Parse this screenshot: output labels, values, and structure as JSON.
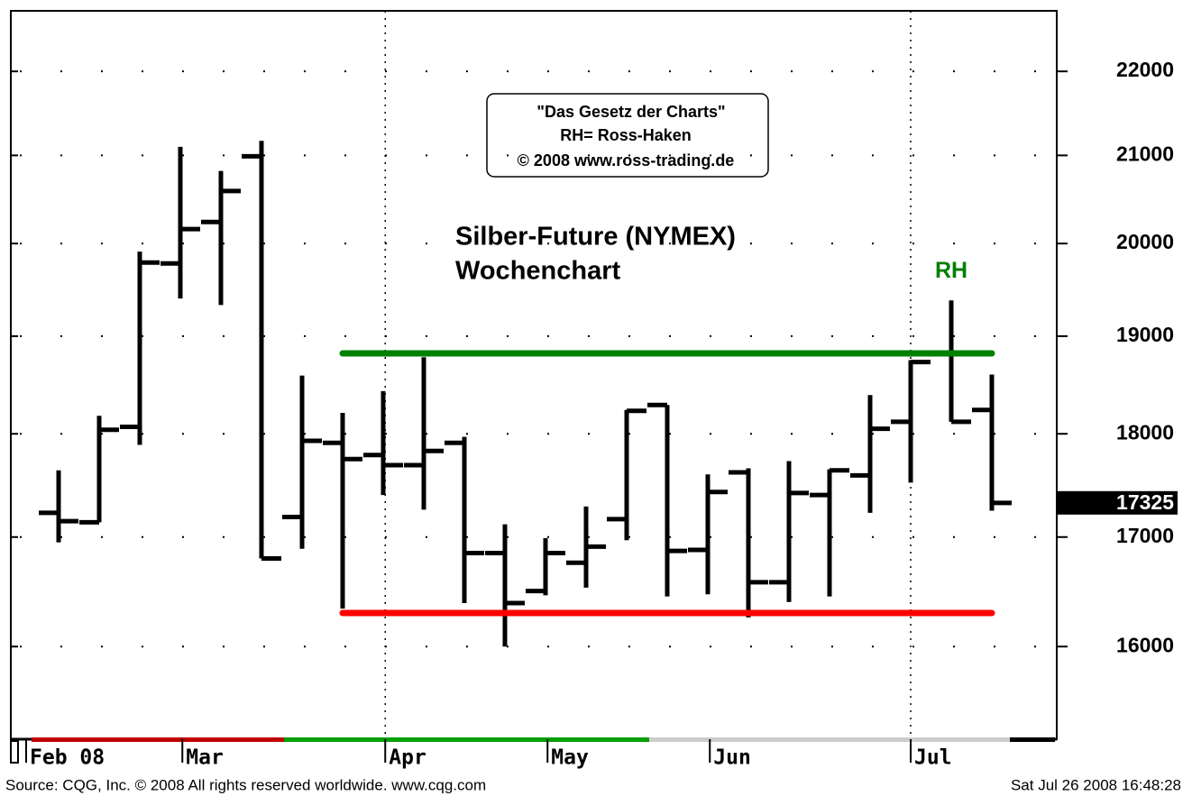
{
  "chart_data": {
    "type": "ohlc",
    "title": "Silber-Future (NYMEX)",
    "subtitle": "Wochenchart",
    "box_lines": [
      "\"Das Gesetz der Charts\"",
      "RH= Ross-Haken",
      "© 2008 www.ross-trading.de"
    ],
    "source": "Source: CQG, Inc. © 2008 All rights reserved worldwide. www.cqg.com",
    "timestamp": "Sat Jul 26 2008 16:48:28",
    "categories": [
      null,
      null,
      null,
      null,
      null,
      null,
      null,
      null,
      null,
      null,
      null,
      null,
      null,
      null,
      null,
      null,
      null,
      null,
      null,
      null,
      null,
      null,
      null,
      null
    ],
    "open": [
      17230,
      17140,
      18070,
      19780,
      20240,
      20990,
      17190,
      17910,
      17790,
      17690,
      17910,
      16850,
      16500,
      16760,
      17170,
      18290,
      16880,
      17620,
      16580,
      17400,
      17590,
      18120,
      18820,
      18240
    ],
    "high": [
      17640,
      18180,
      19910,
      21100,
      20820,
      21170,
      18590,
      18210,
      18430,
      18780,
      17970,
      17120,
      16990,
      17290,
      18240,
      18290,
      17600,
      17660,
      17730,
      17650,
      18390,
      18750,
      19380,
      18600
    ],
    "low": [
      16950,
      17140,
      17890,
      19400,
      19330,
      16800,
      16890,
      16340,
      17400,
      17260,
      16390,
      16000,
      16460,
      16530,
      16970,
      16450,
      16470,
      16260,
      16400,
      16450,
      17230,
      17520,
      18120,
      17250
    ],
    "close": [
      17150,
      18040,
      19790,
      20160,
      20590,
      16800,
      17930,
      17750,
      17690,
      17830,
      16850,
      16390,
      16850,
      16910,
      18230,
      16870,
      17430,
      16580,
      17420,
      17640,
      18050,
      18730,
      18120,
      17325
    ],
    "color": "#000000",
    "ylim": [
      15200,
      22750
    ],
    "log_scale": true,
    "yticks": [
      16000,
      17000,
      18000,
      19000,
      20000,
      21000,
      22000
    ],
    "xticks": [
      {
        "value": -0.8,
        "label": "Feb 08"
      },
      {
        "value": 3.05,
        "label": "Mar"
      },
      {
        "value": 8.05,
        "label": "Apr"
      },
      {
        "value": 12.05,
        "label": "May"
      },
      {
        "value": 16.05,
        "label": "Jun"
      },
      {
        "value": 21,
        "label": "Jul"
      }
    ],
    "grid": true,
    "resistance": {
      "value": 18820,
      "from": 7,
      "to": 23,
      "color": "#008000"
    },
    "support": {
      "value": 16300,
      "from": 7,
      "to": 23,
      "color": "#ff0000"
    },
    "marker": {
      "label": "RH",
      "index": 22,
      "color": "#008000"
    }
  }
}
